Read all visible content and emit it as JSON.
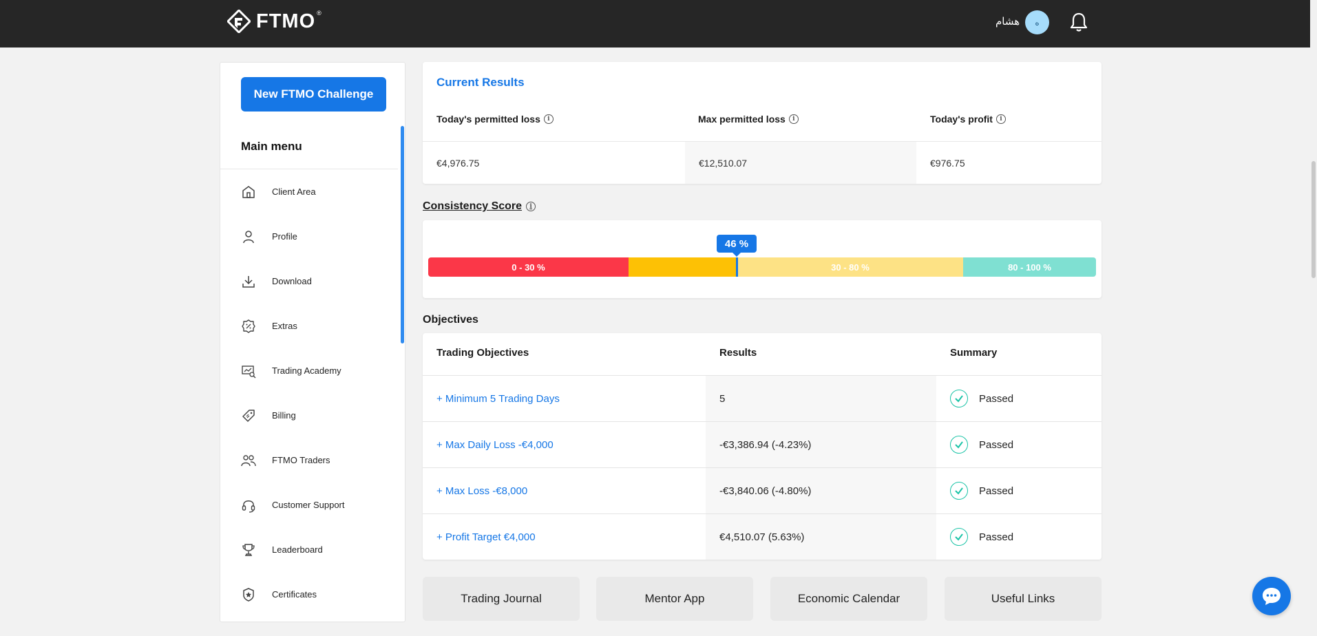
{
  "header": {
    "logo_text": "FTMO",
    "logo_reg": "®",
    "user_name": "هشام",
    "avatar_initial": "ه"
  },
  "sidebar": {
    "new_challenge_label": "New FTMO Challenge",
    "menu_title": "Main menu",
    "items": [
      {
        "label": "Client Area",
        "icon": "home-icon"
      },
      {
        "label": "Profile",
        "icon": "user-icon"
      },
      {
        "label": "Download",
        "icon": "download-icon"
      },
      {
        "label": "Extras",
        "icon": "percent-badge-icon"
      },
      {
        "label": "Trading Academy",
        "icon": "academy-icon"
      },
      {
        "label": "Billing",
        "icon": "tag-icon"
      },
      {
        "label": "FTMO Traders",
        "icon": "users-icon"
      },
      {
        "label": "Customer Support",
        "icon": "headset-icon"
      },
      {
        "label": "Leaderboard",
        "icon": "trophy-icon"
      },
      {
        "label": "Certificates",
        "icon": "certificate-icon"
      }
    ]
  },
  "current_results": {
    "title": "Current Results",
    "headers": [
      "Today's permitted loss",
      "Max permitted loss",
      "Today's profit"
    ],
    "values": [
      "€4,976.75",
      "€12,510.07",
      "€976.75"
    ]
  },
  "consistency": {
    "title": "Consistency Score",
    "score_label": "46 %",
    "score_percent": 46,
    "segments": [
      {
        "label": "0 - 30 %",
        "color": "#fb3748"
      },
      {
        "label": "",
        "color": "#fdc105"
      },
      {
        "label": "30 - 80 %",
        "color": "#fde285"
      },
      {
        "label": "80 - 100 %",
        "color": "#7fe0d2"
      }
    ]
  },
  "objectives": {
    "title": "Objectives",
    "headers": [
      "Trading Objectives",
      "Results",
      "Summary"
    ],
    "rows": [
      {
        "objective": "+ Minimum 5 Trading Days",
        "result": "5",
        "summary": "Passed"
      },
      {
        "objective": "+ Max Daily Loss -€4,000",
        "result": "-€3,386.94 (-4.23%)",
        "summary": "Passed"
      },
      {
        "objective": "+ Max Loss -€8,000",
        "result": "-€3,840.06 (-4.80%)",
        "summary": "Passed"
      },
      {
        "objective": "+ Profit Target €4,000",
        "result": "€4,510.07 (5.63%)",
        "summary": "Passed"
      }
    ]
  },
  "tools": [
    "Trading Journal",
    "Mentor App",
    "Economic Calendar",
    "Useful Links"
  ],
  "colors": {
    "accent": "#1677e6",
    "passed": "#19c3a6",
    "topbar": "#262626"
  }
}
